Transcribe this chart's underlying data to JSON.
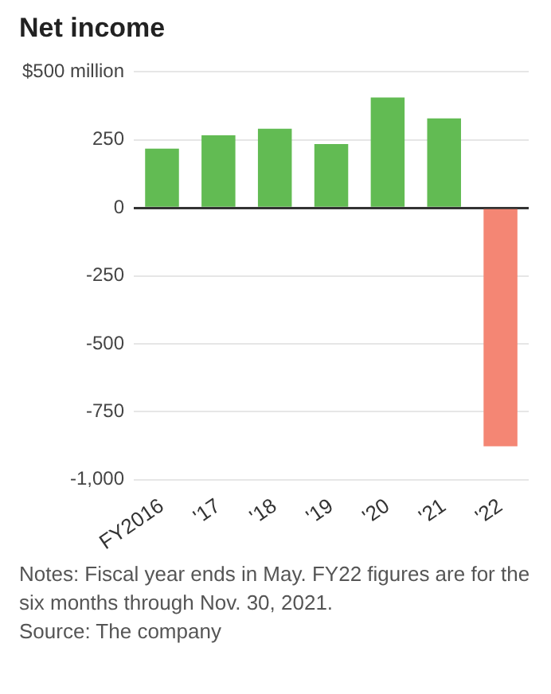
{
  "chart_data": {
    "type": "bar",
    "title": "Net income",
    "categories": [
      "FY2016",
      "'17",
      "'18",
      "'19",
      "'20",
      "'21",
      "'22"
    ],
    "values": [
      218,
      267,
      291,
      235,
      406,
      329,
      -877
    ],
    "colors": [
      "#62bb53",
      "#62bb53",
      "#62bb53",
      "#62bb53",
      "#62bb53",
      "#62bb53",
      "#f48674"
    ],
    "ylim": [
      -1000,
      500
    ],
    "yticks": [
      {
        "value": -1000,
        "label": "-1,000"
      },
      -750,
      -500,
      -250,
      0,
      250,
      {
        "value": 500,
        "label": "$500 million"
      }
    ],
    "grid": "y",
    "legend": false,
    "annotations": [
      "Notes: Fiscal year ends in May. FY22 figures are for the six months through Nov. 30, 2021.",
      "Source: The company"
    ]
  }
}
